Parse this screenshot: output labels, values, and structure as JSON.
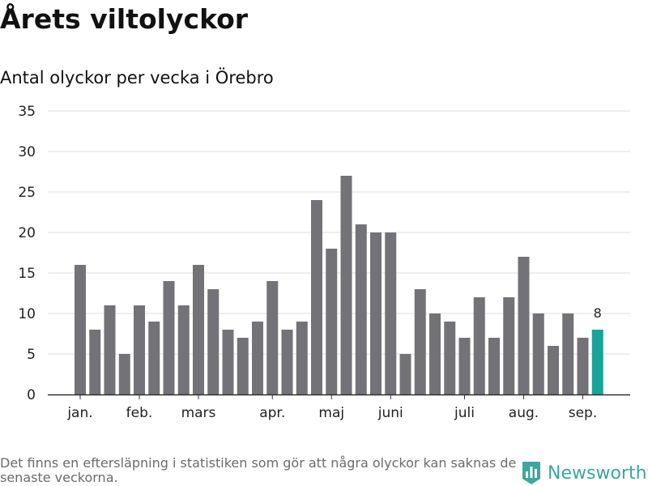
{
  "header": {
    "title": "Årets viltolyckor",
    "subtitle": "Antal olyckor per vecka i Örebro"
  },
  "footer": {
    "note": "Det finns en eftersläpning i statistiken som gör att några olyckor kan saknas de senaste veckorna.",
    "brand": "Newsworthy"
  },
  "colors": {
    "bar": "#737276",
    "highlight": "#1aa398",
    "brand": "#3aa89b",
    "grid": "#dddddd",
    "axis": "#333333"
  },
  "chart_data": {
    "type": "bar",
    "title": "Årets viltolyckor",
    "subtitle": "Antal olyckor per vecka i Örebro",
    "xlabel": "",
    "ylabel": "",
    "ylim": [
      0,
      35
    ],
    "yticks": [
      0,
      5,
      10,
      15,
      20,
      25,
      30,
      35
    ],
    "grid": true,
    "values": [
      16,
      8,
      11,
      5,
      11,
      9,
      14,
      11,
      16,
      13,
      8,
      7,
      9,
      14,
      8,
      9,
      24,
      18,
      27,
      21,
      20,
      20,
      5,
      13,
      10,
      9,
      7,
      12,
      7,
      12,
      17,
      10,
      6,
      10,
      7,
      8
    ],
    "highlight_index": 35,
    "data_labels": [
      {
        "index": 35,
        "text": "8"
      }
    ],
    "month_ticks": [
      {
        "label": "jan.",
        "index": 0
      },
      {
        "label": "feb.",
        "index": 4
      },
      {
        "label": "mars",
        "index": 8
      },
      {
        "label": "apr.",
        "index": 13
      },
      {
        "label": "maj",
        "index": 17
      },
      {
        "label": "juni",
        "index": 21
      },
      {
        "label": "juli",
        "index": 26
      },
      {
        "label": "aug.",
        "index": 30
      },
      {
        "label": "sep.",
        "index": 34
      }
    ]
  }
}
